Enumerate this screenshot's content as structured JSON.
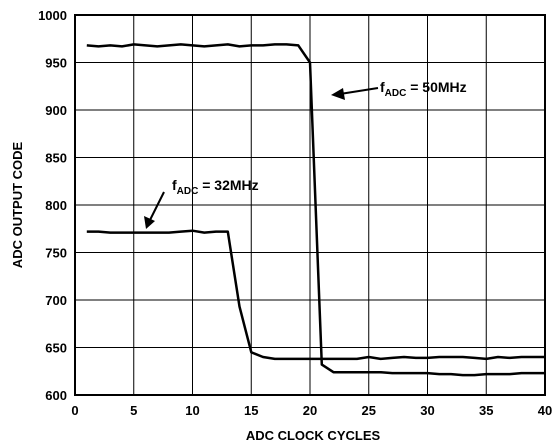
{
  "chart_data": {
    "type": "line",
    "xlabel": "ADC CLOCK CYCLES",
    "ylabel": "ADC OUTPUT CODE",
    "xlim": [
      0,
      40
    ],
    "ylim": [
      600,
      1000
    ],
    "xticks": [
      0,
      5,
      10,
      15,
      20,
      25,
      30,
      35,
      40
    ],
    "yticks": [
      600,
      650,
      700,
      750,
      800,
      850,
      900,
      950,
      1000
    ],
    "grid": true,
    "series": [
      {
        "name": "fADC = 50MHz",
        "x": [
          1,
          2,
          3,
          4,
          5,
          6,
          7,
          8,
          9,
          10,
          11,
          12,
          13,
          14,
          15,
          16,
          17,
          18,
          19,
          20,
          21,
          22,
          23,
          24,
          25,
          26,
          27,
          28,
          29,
          30,
          31,
          32,
          33,
          34,
          35,
          36,
          37,
          38,
          39,
          40
        ],
        "values": [
          968,
          967,
          968,
          967,
          969,
          968,
          967,
          968,
          969,
          968,
          967,
          968,
          969,
          967,
          968,
          968,
          969,
          969,
          968,
          950,
          632,
          624,
          624,
          624,
          624,
          624,
          623,
          623,
          623,
          623,
          622,
          622,
          621,
          621,
          622,
          622,
          622,
          623,
          623,
          623
        ]
      },
      {
        "name": "fADC = 32MHz",
        "x": [
          1,
          2,
          3,
          4,
          5,
          6,
          7,
          8,
          9,
          10,
          11,
          12,
          13,
          14,
          15,
          16,
          17,
          18,
          19,
          20,
          21,
          22,
          23,
          24,
          25,
          26,
          27,
          28,
          29,
          30,
          31,
          32,
          33,
          34,
          35,
          36,
          37,
          38,
          39,
          40
        ],
        "values": [
          772,
          772,
          771,
          771,
          771,
          771,
          771,
          771,
          772,
          773,
          771,
          772,
          772,
          693,
          645,
          640,
          638,
          638,
          638,
          638,
          638,
          638,
          638,
          638,
          640,
          638,
          639,
          640,
          639,
          639,
          640,
          640,
          640,
          639,
          638,
          640,
          639,
          640,
          640,
          640
        ]
      }
    ],
    "annotations": [
      {
        "main": "f",
        "sub": "ADC",
        "rest": " = 50MHz"
      },
      {
        "main": "f",
        "sub": "ADC",
        "rest": " = 32MHz"
      }
    ]
  },
  "colors": {
    "line": "#000000",
    "grid": "#000000",
    "background": "#ffffff"
  }
}
